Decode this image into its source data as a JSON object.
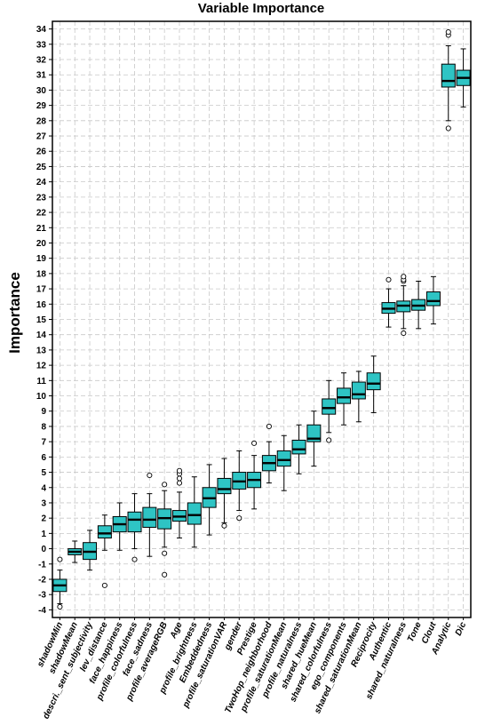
{
  "chart_data": {
    "type": "box",
    "title": "Variable Importance",
    "xlabel": "",
    "ylabel": "Importance",
    "ylim": [
      -4.5,
      34.5
    ],
    "yticks": [
      -4,
      -3,
      -2,
      -1,
      0,
      1,
      2,
      3,
      4,
      5,
      6,
      7,
      8,
      9,
      10,
      11,
      12,
      13,
      14,
      15,
      16,
      17,
      18,
      19,
      20,
      21,
      22,
      23,
      24,
      25,
      26,
      27,
      28,
      29,
      30,
      31,
      32,
      33,
      34
    ],
    "grid": true,
    "box_color": "#2ec4c4",
    "categories": [
      "shadowMin",
      "shadowMean",
      "descri._sent_subjectivity",
      "lev_distance",
      "face_happiness",
      "profile_colorfulness",
      "face_sadness",
      "profile_averageRGB",
      "Age",
      "profile_brightness",
      "Embeddedness",
      "profile_saturationVAR",
      "gender",
      "Prestige",
      "TwoHop_neighborhood",
      "profile_saturationMean",
      "profile_naturalness",
      "shared_hueMean",
      "shared_colorfulness",
      "ego_components",
      "shared_saturationMean",
      "Reciprocity",
      "Authentic",
      "shared_naturalness",
      "Tone",
      "Clout",
      "Analytic",
      "Dic"
    ],
    "boxes": [
      {
        "min": -3.6,
        "q1": -2.8,
        "median": -2.4,
        "q3": -2.0,
        "max": -1.4,
        "outliers": [
          -0.7,
          -3.8
        ]
      },
      {
        "min": -0.9,
        "q1": -0.4,
        "median": -0.2,
        "q3": 0.0,
        "max": 0.5,
        "outliers": []
      },
      {
        "min": -1.4,
        "q1": -0.7,
        "median": -0.2,
        "q3": 0.4,
        "max": 1.2,
        "outliers": []
      },
      {
        "min": -0.1,
        "q1": 0.7,
        "median": 1.0,
        "q3": 1.5,
        "max": 2.2,
        "outliers": [
          -2.4
        ]
      },
      {
        "min": -0.1,
        "q1": 1.1,
        "median": 1.6,
        "q3": 2.1,
        "max": 3.0,
        "outliers": []
      },
      {
        "min": 0.0,
        "q1": 1.1,
        "median": 1.9,
        "q3": 2.4,
        "max": 3.6,
        "outliers": [
          -0.7
        ]
      },
      {
        "min": -0.5,
        "q1": 1.4,
        "median": 1.9,
        "q3": 2.7,
        "max": 3.6,
        "outliers": [
          4.8
        ]
      },
      {
        "min": 0.1,
        "q1": 1.3,
        "median": 2.0,
        "q3": 2.6,
        "max": 3.8,
        "outliers": [
          4.2,
          -0.3,
          -1.7
        ]
      },
      {
        "min": 0.7,
        "q1": 1.8,
        "median": 2.1,
        "q3": 2.5,
        "max": 3.7,
        "outliers": [
          4.3,
          4.6,
          4.9,
          5.1
        ]
      },
      {
        "min": 0.1,
        "q1": 1.6,
        "median": 2.2,
        "q3": 3.0,
        "max": 4.7,
        "outliers": []
      },
      {
        "min": 0.9,
        "q1": 2.7,
        "median": 3.3,
        "q3": 4.0,
        "max": 5.5,
        "outliers": []
      },
      {
        "min": 1.7,
        "q1": 3.6,
        "median": 3.9,
        "q3": 4.6,
        "max": 5.9,
        "outliers": [
          1.5
        ]
      },
      {
        "min": 2.5,
        "q1": 3.9,
        "median": 4.4,
        "q3": 5.0,
        "max": 6.4,
        "outliers": [
          2.0
        ]
      },
      {
        "min": 2.6,
        "q1": 4.0,
        "median": 4.5,
        "q3": 5.0,
        "max": 6.1,
        "outliers": [
          6.9
        ]
      },
      {
        "min": 4.3,
        "q1": 5.1,
        "median": 5.6,
        "q3": 6.1,
        "max": 7.0,
        "outliers": [
          8.0
        ]
      },
      {
        "min": 3.8,
        "q1": 5.4,
        "median": 5.8,
        "q3": 6.4,
        "max": 7.4,
        "outliers": []
      },
      {
        "min": 4.9,
        "q1": 6.2,
        "median": 6.5,
        "q3": 7.1,
        "max": 8.1,
        "outliers": []
      },
      {
        "min": 5.4,
        "q1": 7.0,
        "median": 7.2,
        "q3": 8.1,
        "max": 9.0,
        "outliers": []
      },
      {
        "min": 7.6,
        "q1": 8.8,
        "median": 9.2,
        "q3": 9.8,
        "max": 11.0,
        "outliers": [
          7.1
        ]
      },
      {
        "min": 8.1,
        "q1": 9.5,
        "median": 9.9,
        "q3": 10.5,
        "max": 11.5,
        "outliers": []
      },
      {
        "min": 8.3,
        "q1": 9.8,
        "median": 10.1,
        "q3": 10.9,
        "max": 11.6,
        "outliers": []
      },
      {
        "min": 8.9,
        "q1": 10.4,
        "median": 10.8,
        "q3": 11.5,
        "max": 12.6,
        "outliers": []
      },
      {
        "min": 14.5,
        "q1": 15.4,
        "median": 15.7,
        "q3": 16.1,
        "max": 17.0,
        "outliers": [
          17.6
        ]
      },
      {
        "min": 14.4,
        "q1": 15.5,
        "median": 15.9,
        "q3": 16.2,
        "max": 17.2,
        "outliers": [
          17.5,
          17.6,
          17.8,
          14.1
        ]
      },
      {
        "min": 14.4,
        "q1": 15.6,
        "median": 15.9,
        "q3": 16.3,
        "max": 17.5,
        "outliers": []
      },
      {
        "min": 14.7,
        "q1": 15.9,
        "median": 16.2,
        "q3": 16.8,
        "max": 17.8,
        "outliers": []
      },
      {
        "min": 28.0,
        "q1": 30.2,
        "median": 30.6,
        "q3": 31.7,
        "max": 32.9,
        "outliers": [
          33.6,
          33.8,
          27.5
        ]
      },
      {
        "min": 28.9,
        "q1": 30.3,
        "median": 30.8,
        "q3": 31.3,
        "max": 32.7,
        "outliers": []
      }
    ]
  }
}
